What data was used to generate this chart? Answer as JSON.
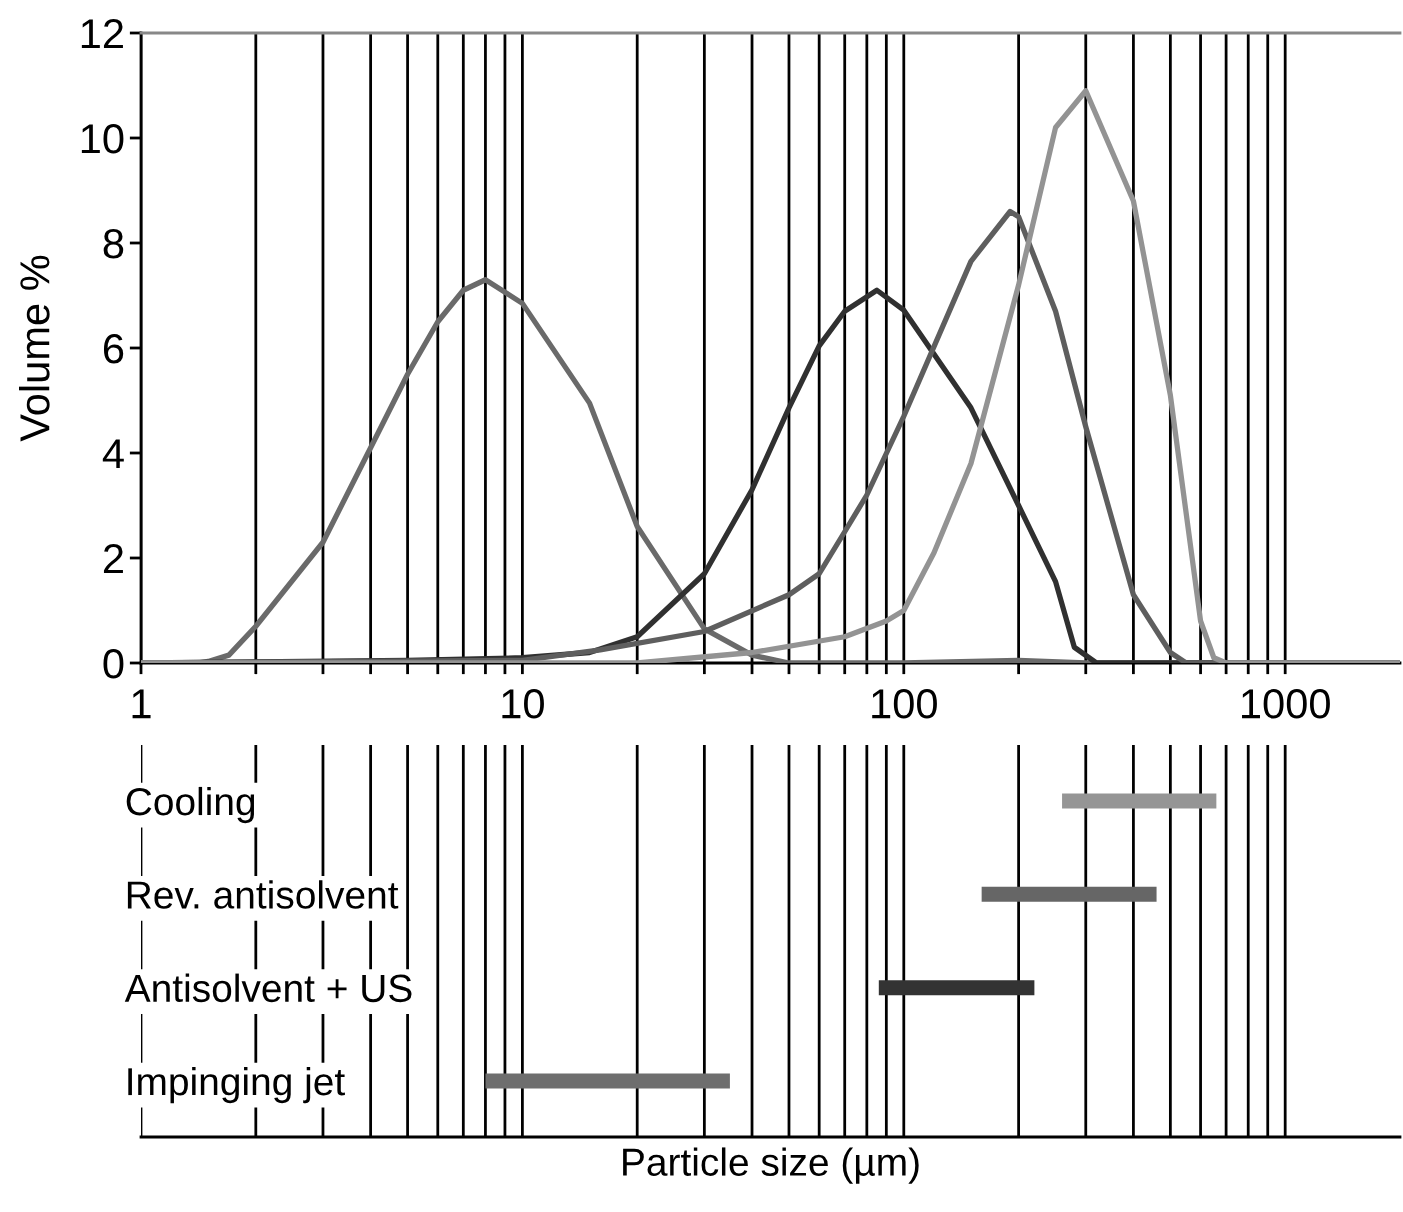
{
  "chart_data": [
    {
      "type": "line",
      "ylabel": "Volume %",
      "log": "x",
      "xlim": [
        1,
        2000
      ],
      "ylim": [
        0,
        12
      ],
      "yticks": [
        0,
        2,
        4,
        6,
        8,
        10,
        12
      ],
      "xticks": [
        1,
        {
          "value": 2,
          "label": null
        },
        {
          "value": 3,
          "label": null
        },
        {
          "value": 4,
          "label": null
        },
        {
          "value": 5,
          "label": null
        },
        {
          "value": 6,
          "label": null
        },
        {
          "value": 7,
          "label": null
        },
        {
          "value": 8,
          "label": null
        },
        {
          "value": 9,
          "label": null
        },
        10,
        {
          "value": 20,
          "label": null
        },
        {
          "value": 30,
          "label": null
        },
        {
          "value": 40,
          "label": null
        },
        {
          "value": 50,
          "label": null
        },
        {
          "value": 60,
          "label": null
        },
        {
          "value": 70,
          "label": null
        },
        {
          "value": 80,
          "label": null
        },
        {
          "value": 90,
          "label": null
        },
        100,
        {
          "value": 200,
          "label": null
        },
        {
          "value": 300,
          "label": null
        },
        {
          "value": 400,
          "label": null
        },
        {
          "value": 500,
          "label": null
        },
        {
          "value": 600,
          "label": null
        },
        {
          "value": 700,
          "label": null
        },
        {
          "value": 800,
          "label": null
        },
        {
          "value": 900,
          "label": null
        },
        1000
      ],
      "grid": "x",
      "line_style": "solid",
      "marker": "none",
      "series": [
        {
          "color": "#6a6a6a",
          "x": [
            1,
            1.4,
            1.5,
            1.7,
            2,
            3,
            4,
            5,
            6,
            7,
            8,
            10,
            15,
            20,
            30,
            40,
            50,
            100,
            200,
            300,
            2000
          ],
          "values": [
            0,
            0,
            0.03,
            0.15,
            0.7,
            2.3,
            4.1,
            5.5,
            6.5,
            7.1,
            7.3,
            6.85,
            4.95,
            2.6,
            0.65,
            0.15,
            0,
            0,
            0.05,
            0,
            0
          ]
        },
        {
          "color": "#303030",
          "x": [
            1,
            5,
            10,
            15,
            20,
            30,
            40,
            50,
            60,
            70,
            85,
            100,
            150,
            200,
            250,
            280,
            320,
            2000
          ],
          "values": [
            0,
            0.05,
            0.1,
            0.2,
            0.5,
            1.7,
            3.3,
            4.86,
            6.04,
            6.7,
            7.1,
            6.72,
            4.86,
            3.0,
            1.55,
            0.3,
            0,
            0
          ]
        },
        {
          "color": "#5e5e5e",
          "x": [
            1,
            10,
            16,
            30,
            50,
            60,
            70,
            80,
            100,
            150,
            190,
            200,
            250,
            300,
            400,
            500,
            550,
            2000
          ],
          "values": [
            0,
            0.05,
            0.25,
            0.6,
            1.3,
            1.7,
            2.5,
            3.2,
            4.7,
            7.65,
            8.6,
            8.5,
            6.7,
            4.5,
            1.3,
            0.2,
            0,
            0
          ]
        },
        {
          "color": "#939393",
          "x": [
            1,
            20,
            40,
            70,
            90,
            100,
            120,
            150,
            200,
            250,
            300,
            400,
            500,
            600,
            650,
            700,
            2000
          ],
          "values": [
            0,
            0,
            0.2,
            0.5,
            0.8,
            1.0,
            2.1,
            3.8,
            7.2,
            10.2,
            10.9,
            8.8,
            5.1,
            0.8,
            0.1,
            0,
            0
          ]
        }
      ]
    },
    {
      "type": "bar",
      "orientation": "horizontal",
      "xlabel": "Particle size (µm)",
      "log": "x",
      "xlim": [
        1,
        2000
      ],
      "tick_labels": "y",
      "grid": "x",
      "xticks": [
        1,
        2,
        3,
        4,
        5,
        6,
        7,
        8,
        9,
        10,
        20,
        30,
        40,
        50,
        60,
        70,
        80,
        90,
        100,
        200,
        300,
        400,
        500,
        600,
        700,
        800,
        900,
        1000
      ],
      "categories": [
        "Cooling",
        "Rev. antisolvent",
        "Antisolvent + US",
        "Impinging jet"
      ],
      "base": [
        260,
        160,
        86,
        8
      ],
      "values": [
        400,
        300,
        134,
        27
      ],
      "colors": [
        "#959595",
        "#666666",
        "#333333",
        "#6e6e6e"
      ]
    }
  ]
}
